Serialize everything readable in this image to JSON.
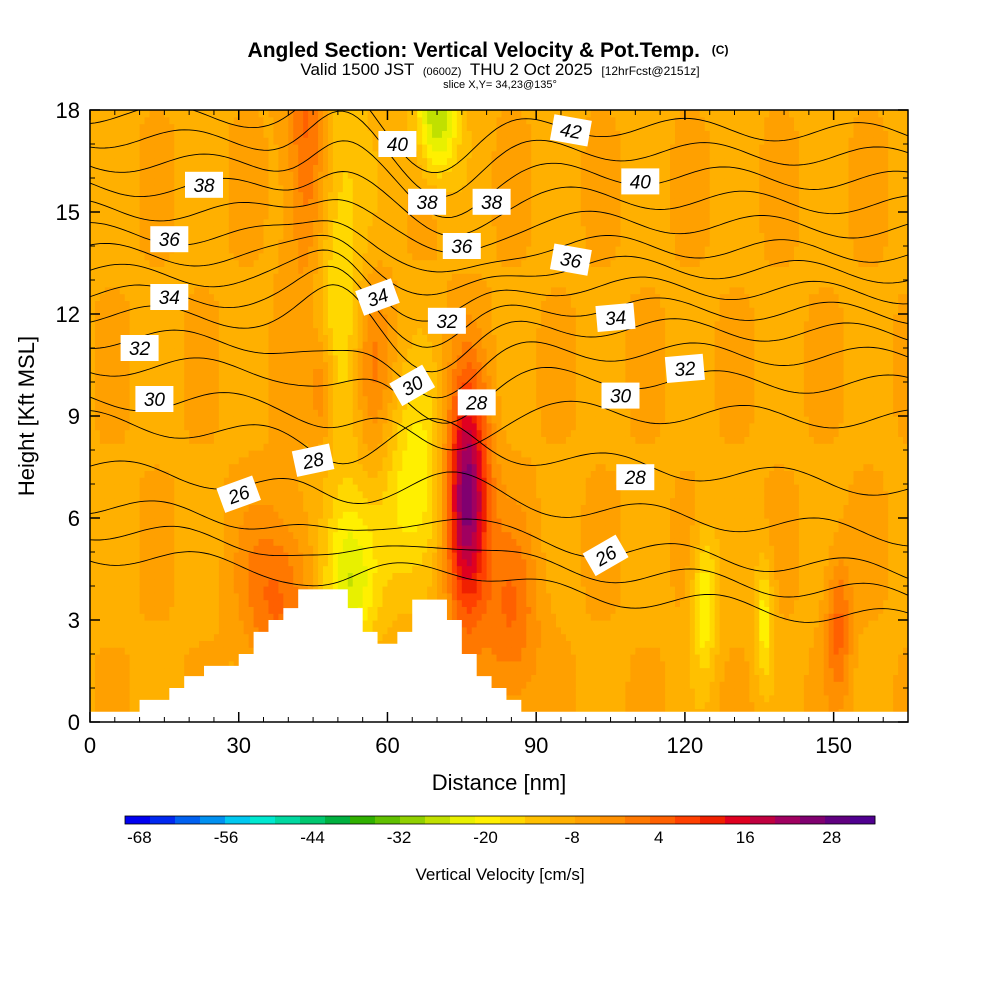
{
  "chart_data": {
    "type": "heatmap",
    "title": "Angled Section: Vertical Velocity & Pot.Temp.",
    "title_unit": "(C)",
    "subtitle": {
      "prefix": "Valid 1500 JST",
      "utc": "(0600Z)",
      "date": "THU 2 Oct 2025",
      "forecast": "[12hrFcst@2151z]"
    },
    "slice_label": "slice X,Y= 34,23@135°",
    "xlabel": "Distance [nm]",
    "ylabel": "Height [Kft MSL]",
    "xlim": [
      0,
      165
    ],
    "ylim": [
      0,
      18
    ],
    "x_ticks": [
      0,
      30,
      60,
      90,
      120,
      150
    ],
    "y_ticks": [
      0,
      3,
      6,
      9,
      12,
      15,
      18
    ],
    "x_tick_labels": [
      "0",
      "30",
      "60",
      "90",
      "120",
      "150"
    ],
    "y_tick_labels": [
      "0",
      "3",
      "6",
      "9",
      "12",
      "15",
      "18"
    ],
    "colorbar": {
      "title": "Vertical Velocity [cm/s]",
      "min": -70,
      "max": 34,
      "step": 4,
      "tick_values": [
        -68,
        -56,
        -44,
        -32,
        -20,
        -8,
        4,
        16,
        28
      ],
      "tick_labels": [
        "-68",
        "-56",
        "-44",
        "-32",
        "-20",
        "-8",
        "4",
        "16",
        "28"
      ],
      "colors": [
        "#0000f0",
        "#0028f0",
        "#0060f0",
        "#0090f0",
        "#00c8f0",
        "#00e8d0",
        "#00d8a0",
        "#00c870",
        "#00b040",
        "#30b000",
        "#60c000",
        "#90d000",
        "#c0e000",
        "#e8f000",
        "#fff000",
        "#ffd800",
        "#ffc000",
        "#ffb000",
        "#ffa000",
        "#ff9000",
        "#ff7800",
        "#ff6000",
        "#ff4000",
        "#f02000",
        "#e00020",
        "#c00040",
        "#a00060",
        "#800070",
        "#600080",
        "#500090"
      ]
    },
    "field_features": [
      {
        "x": 76,
        "y": 6.5,
        "sx": 3.0,
        "sy": 2.4,
        "w": 42,
        "note": "strong updraft core"
      },
      {
        "x": 52,
        "y": 4.2,
        "sx": 4.0,
        "sy": 1.8,
        "w": -20,
        "note": "downdraft lee slope"
      },
      {
        "x": 66,
        "y": 6.8,
        "sx": 4.5,
        "sy": 2.2,
        "w": -16,
        "note": "downdraft"
      },
      {
        "x": 44,
        "y": 17.5,
        "sx": 3.0,
        "sy": 3.5,
        "w": 16,
        "note": "upper updraft"
      },
      {
        "x": 50,
        "y": 14.0,
        "sx": 4.0,
        "sy": 4.5,
        "w": -12,
        "note": "upper downdraft"
      },
      {
        "x": 70,
        "y": 17.8,
        "sx": 3.0,
        "sy": 1.2,
        "w": -24,
        "note": "upper downdraft"
      },
      {
        "x": 38,
        "y": 3.8,
        "sx": 5.0,
        "sy": 1.8,
        "w": 14,
        "note": "windward updraft"
      },
      {
        "x": 85,
        "y": 3.0,
        "sx": 4.0,
        "sy": 2.0,
        "w": 12,
        "note": "updraft"
      },
      {
        "x": 124,
        "y": 3.5,
        "sx": 1.8,
        "sy": 1.5,
        "w": -16,
        "note": "downdraft"
      },
      {
        "x": 136,
        "y": 3.0,
        "sx": 1.3,
        "sy": 1.3,
        "w": -14,
        "note": "downdraft"
      },
      {
        "x": 151,
        "y": 2.8,
        "sx": 1.8,
        "sy": 1.5,
        "w": 14,
        "note": "updraft"
      },
      {
        "x": 47,
        "y": 9.8,
        "sx": 2.0,
        "sy": 1.2,
        "w": 12,
        "note": "updraft"
      },
      {
        "x": 57,
        "y": 10.5,
        "sx": 2.5,
        "sy": 2.0,
        "w": 9,
        "note": "updraft"
      }
    ],
    "terrain": [
      {
        "x": 0,
        "y": 0.3
      },
      {
        "x": 10,
        "y": 0.65
      },
      {
        "x": 16,
        "y": 1.0
      },
      {
        "x": 19,
        "y": 1.35
      },
      {
        "x": 23,
        "y": 1.65
      },
      {
        "x": 30,
        "y": 2.0
      },
      {
        "x": 33,
        "y": 2.65
      },
      {
        "x": 36,
        "y": 3.0
      },
      {
        "x": 39,
        "y": 3.35
      },
      {
        "x": 42,
        "y": 3.9
      },
      {
        "x": 52,
        "y": 3.35
      },
      {
        "x": 55,
        "y": 2.65
      },
      {
        "x": 58,
        "y": 2.3
      },
      {
        "x": 62,
        "y": 2.65
      },
      {
        "x": 65,
        "y": 3.6
      },
      {
        "x": 72,
        "y": 3.0
      },
      {
        "x": 75,
        "y": 2.0
      },
      {
        "x": 78,
        "y": 1.35
      },
      {
        "x": 81,
        "y": 1.0
      },
      {
        "x": 84,
        "y": 0.65
      },
      {
        "x": 87,
        "y": 0.3
      },
      {
        "x": 165,
        "y": 0.3
      }
    ],
    "theta_contours": [
      {
        "theta": 25,
        "base": 4.0
      },
      {
        "theta": 26,
        "base": 4.7
      },
      {
        "theta": 27,
        "base": 5.4
      },
      {
        "theta": 28,
        "base": 6.5
      },
      {
        "theta": 29,
        "base": 7.9
      },
      {
        "theta": 30,
        "base": 9.2
      },
      {
        "theta": 31,
        "base": 10.2
      },
      {
        "theta": 32,
        "base": 11.0
      },
      {
        "theta": 33,
        "base": 11.7
      },
      {
        "theta": 34,
        "base": 12.3
      },
      {
        "theta": 35,
        "base": 12.9
      },
      {
        "theta": 36,
        "base": 13.5
      },
      {
        "theta": 37,
        "base": 14.1
      },
      {
        "theta": 38,
        "base": 14.8
      },
      {
        "theta": 39,
        "base": 15.5
      },
      {
        "theta": 40,
        "base": 16.2
      },
      {
        "theta": 41,
        "base": 16.9
      },
      {
        "theta": 42,
        "base": 17.6
      }
    ],
    "contour_labels": [
      {
        "text": "26",
        "x": 30,
        "y": 6.7,
        "rot": -20
      },
      {
        "text": "26",
        "x": 104,
        "y": 4.9,
        "rot": -30
      },
      {
        "text": "28",
        "x": 45,
        "y": 7.7,
        "rot": -12
      },
      {
        "text": "28",
        "x": 78,
        "y": 9.4,
        "rot": 0
      },
      {
        "text": "28",
        "x": 110,
        "y": 7.2,
        "rot": 0
      },
      {
        "text": "30",
        "x": 13,
        "y": 9.5,
        "rot": 0
      },
      {
        "text": "30",
        "x": 65,
        "y": 9.9,
        "rot": -30
      },
      {
        "text": "30",
        "x": 107,
        "y": 9.6,
        "rot": 0
      },
      {
        "text": "32",
        "x": 10,
        "y": 11.0,
        "rot": 0
      },
      {
        "text": "32",
        "x": 72,
        "y": 11.8,
        "rot": 0
      },
      {
        "text": "32",
        "x": 120,
        "y": 10.4,
        "rot": -5
      },
      {
        "text": "34",
        "x": 16,
        "y": 12.5,
        "rot": 0
      },
      {
        "text": "34",
        "x": 58,
        "y": 12.5,
        "rot": -20
      },
      {
        "text": "34",
        "x": 106,
        "y": 11.9,
        "rot": -5
      },
      {
        "text": "36",
        "x": 16,
        "y": 14.2,
        "rot": 0
      },
      {
        "text": "36",
        "x": 75,
        "y": 14.0,
        "rot": 0
      },
      {
        "text": "36",
        "x": 97,
        "y": 13.6,
        "rot": 10
      },
      {
        "text": "38",
        "x": 23,
        "y": 15.8,
        "rot": 0
      },
      {
        "text": "38",
        "x": 68,
        "y": 15.3,
        "rot": 0
      },
      {
        "text": "38",
        "x": 81,
        "y": 15.3,
        "rot": 0
      },
      {
        "text": "40",
        "x": 62,
        "y": 17.0,
        "rot": 0
      },
      {
        "text": "40",
        "x": 111,
        "y": 15.9,
        "rot": 0
      },
      {
        "text": "42",
        "x": 97,
        "y": 17.4,
        "rot": 10
      }
    ]
  }
}
